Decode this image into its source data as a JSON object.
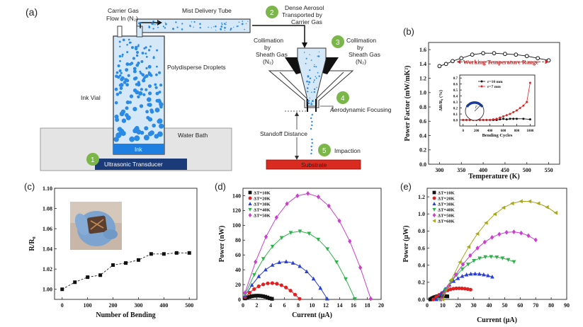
{
  "panels": {
    "a": {
      "label": "(a)",
      "texts": {
        "carrier_gas": "Carrier Gas",
        "flow_in": "Flow In (N₂)",
        "mist_tube": "Mist Delivery Tube",
        "polydisperse": "Polydisperse Droplets",
        "ink_vial": "Ink Vial",
        "water_bath": "Water Bath",
        "ink": "Ink",
        "ultrasonic": "Ultrasonic Transducer",
        "dense1": "Dense Aerosol",
        "dense2": "Transported by",
        "dense3": "Carrier Gas",
        "coll_l1": "Collimation",
        "coll_l2": "by",
        "coll_l3": "Sheath Gas",
        "coll_l4": "(N₂)",
        "coll_r1": "Collimation",
        "coll_r2": "by",
        "coll_r3": "Sheath Gas",
        "coll_r4": "(N₂)",
        "aero_focus": "Aerodynamic Focusing",
        "standoff": "Standoff Distance",
        "impaction": "Impaction",
        "substrate": "Substrate"
      },
      "steps": [
        "1",
        "2",
        "3",
        "4",
        "5"
      ],
      "colors": {
        "green": "#7ab648",
        "blue": "#1f7fe0",
        "navy": "#1b3a78",
        "red": "#d92b20"
      }
    },
    "b": {
      "label": "(b)",
      "inset_legend_1": "r=10 mm",
      "inset_legend_2": "r=7 mm",
      "inset_r_label": "r"
    },
    "c": {
      "label": "(c)"
    },
    "d": {
      "label": "(d)"
    },
    "e": {
      "label": "(e)"
    }
  },
  "chart_data": [
    {
      "id": "b",
      "type": "line",
      "xlabel": "Temperature (K)",
      "ylabel": "Power Factor (mW/mK²)",
      "xlim": [
        275,
        575
      ],
      "ylim": [
        0.0,
        1.7
      ],
      "xticks": [
        "300",
        "350",
        "400",
        "450",
        "500",
        "550"
      ],
      "yticks": [
        "0.0",
        "0.2",
        "0.4",
        "0.6",
        "0.8",
        "1.0",
        "1.2",
        "1.4",
        "1.6"
      ],
      "annotation": "Working Temperature Range",
      "series": [
        {
          "name": "PF",
          "color": "#111111",
          "x": [
            300,
            315,
            330,
            350,
            375,
            400,
            425,
            450,
            475,
            500,
            525,
            550
          ],
          "y": [
            1.37,
            1.4,
            1.44,
            1.48,
            1.53,
            1.55,
            1.55,
            1.54,
            1.53,
            1.51,
            1.48,
            1.45
          ]
        }
      ],
      "inset": {
        "type": "line",
        "xlabel": "Bending Cycles",
        "ylabel": "ΔR/R₀ (%)",
        "xlim": [
          -50,
          1070
        ],
        "ylim": [
          -0.1,
          0.75
        ],
        "xticks": [
          "0",
          "200",
          "400",
          "600",
          "800",
          "1000"
        ],
        "yticks": [
          "0.0",
          "0.1",
          "0.2",
          "0.3",
          "0.4",
          "0.5",
          "0.6",
          "0.7"
        ],
        "series": [
          {
            "name": "r=10 mm",
            "color": "#111111",
            "x": [
              0,
              50,
              100,
              150,
              200,
              250,
              300,
              350,
              400,
              450,
              500,
              550,
              600,
              650,
              700,
              750,
              800,
              900,
              1000
            ],
            "y": [
              0.0,
              0.0,
              0.0,
              0.0,
              0.0,
              0.0,
              0.0,
              0.0,
              0.0,
              0.0,
              0.0,
              0.01,
              0.02,
              0.01,
              0.02,
              0.02,
              0.02,
              0.02,
              0.01
            ]
          },
          {
            "name": "r=7 mm",
            "color": "#e02020",
            "x": [
              0,
              50,
              100,
              150,
              200,
              250,
              300,
              350,
              400,
              450,
              500,
              550,
              600,
              650,
              700,
              750,
              800,
              850,
              900,
              950,
              1000
            ],
            "y": [
              0.0,
              0.0,
              0.0,
              0.0,
              0.0,
              0.0,
              0.0,
              0.0,
              0.0,
              0.01,
              0.02,
              0.04,
              0.06,
              0.08,
              0.1,
              0.13,
              0.16,
              0.2,
              0.24,
              0.3,
              0.62
            ]
          }
        ]
      }
    },
    {
      "id": "c",
      "type": "line",
      "xlabel": "Number of Bending",
      "ylabel": "R/R₀",
      "xlim": [
        -30,
        530
      ],
      "ylim": [
        0.99,
        1.1
      ],
      "xticks": [
        "0",
        "100",
        "200",
        "300",
        "400",
        "500"
      ],
      "yticks": [
        "1.00",
        "1.02",
        "1.04",
        "1.06",
        "1.08",
        "1.10"
      ],
      "series": [
        {
          "name": "R/R0",
          "color": "#111111",
          "x": [
            0,
            50,
            100,
            150,
            200,
            250,
            300,
            350,
            400,
            450,
            500
          ],
          "y": [
            1.0,
            1.007,
            1.012,
            1.014,
            1.024,
            1.026,
            1.029,
            1.035,
            1.035,
            1.036,
            1.036
          ]
        }
      ]
    },
    {
      "id": "d",
      "type": "line",
      "xlabel": "Current (μA)",
      "ylabel": "Power (nW)",
      "xlim": [
        0,
        20
      ],
      "ylim": [
        0,
        150
      ],
      "xticks": [
        "0",
        "2",
        "4",
        "6",
        "8",
        "10",
        "12",
        "14",
        "16",
        "18",
        "20"
      ],
      "yticks": [
        "0",
        "20",
        "40",
        "60",
        "80",
        "100",
        "120",
        "140"
      ],
      "series": [
        {
          "name": "ΔT=10K",
          "color": "#111111",
          "marker": "square",
          "vmax": 4.2,
          "pmax": 5
        },
        {
          "name": "ΔT=20K",
          "color": "#e02020",
          "marker": "circle",
          "vmax": 8.2,
          "pmax": 22
        },
        {
          "name": "ΔT=30K",
          "color": "#2a3fd6",
          "marker": "triangle",
          "vmax": 12.2,
          "pmax": 51
        },
        {
          "name": "ΔT=40K",
          "color": "#2db34a",
          "marker": "triangle-down",
          "vmax": 16.2,
          "pmax": 92
        },
        {
          "name": "ΔT=50K",
          "color": "#cc3fcc",
          "marker": "diamond",
          "vmax": 18.5,
          "pmax": 143
        }
      ]
    },
    {
      "id": "e",
      "type": "line",
      "xlabel": "Current (μA)",
      "ylabel": "Power (μW)",
      "xlim": [
        0,
        90
      ],
      "ylim": [
        0,
        1.3
      ],
      "xticks": [
        "0",
        "10",
        "20",
        "30",
        "40",
        "50",
        "60",
        "70",
        "80",
        "90"
      ],
      "yticks": [
        "0.0",
        "0.2",
        "0.4",
        "0.6",
        "0.8",
        "1.0",
        "1.2"
      ],
      "series": [
        {
          "name": "ΔT=10K",
          "color": "#111111",
          "marker": "square",
          "start": 2,
          "end": 13,
          "pmax": 0.04,
          "peak": 9
        },
        {
          "name": "ΔT=20K",
          "color": "#e02020",
          "marker": "circle",
          "start": 4,
          "end": 28,
          "pmax": 0.13,
          "peak": 20
        },
        {
          "name": "ΔT=30K",
          "color": "#2a3fd6",
          "marker": "triangle",
          "start": 6,
          "end": 42,
          "pmax": 0.3,
          "peak": 30
        },
        {
          "name": "ΔT=40K",
          "color": "#2db34a",
          "marker": "triangle-down",
          "start": 8,
          "end": 56,
          "pmax": 0.5,
          "peak": 40
        },
        {
          "name": "ΔT=50K",
          "color": "#cc3fcc",
          "marker": "diamond",
          "start": 9,
          "end": 70,
          "pmax": 0.79,
          "peak": 55
        },
        {
          "name": "ΔT=60K",
          "color": "#a8a81c",
          "marker": "triangle-left",
          "start": 10,
          "end": 83,
          "pmax": 1.15,
          "peak": 63
        }
      ]
    }
  ]
}
